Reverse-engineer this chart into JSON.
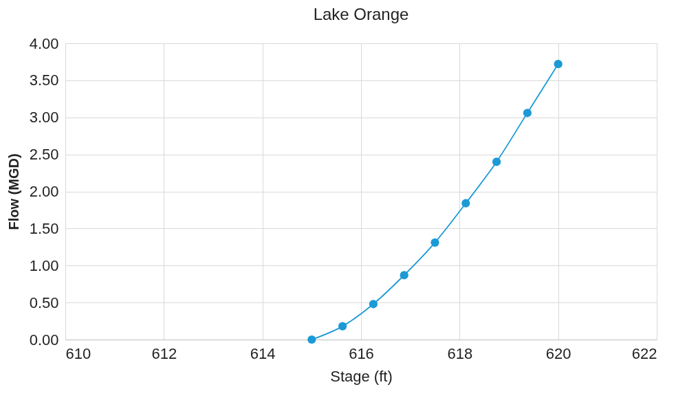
{
  "chart_data": {
    "type": "line",
    "title": "Lake Orange",
    "xlabel": "Stage (ft)",
    "ylabel": "Flow (MGD)",
    "series": [
      {
        "color": "#1b9ad6",
        "x": [
          615,
          615.625,
          616.25,
          616.875,
          617.5,
          618.125,
          618.75,
          619.375,
          620
        ],
        "values": [
          0,
          0.18,
          0.48,
          0.87,
          1.31,
          1.84,
          2.4,
          3.06,
          3.72
        ]
      }
    ],
    "xlim": [
      610,
      622
    ],
    "xticks": [
      610,
      612,
      614,
      616,
      618,
      620,
      622
    ],
    "ylim": [
      0,
      4
    ],
    "yticks": [
      {
        "value": 0,
        "label": "0.00"
      },
      {
        "value": 0.5,
        "label": "0.50"
      },
      {
        "value": 1,
        "label": "1.00"
      },
      {
        "value": 1.5,
        "label": "1.50"
      },
      {
        "value": 2,
        "label": "2.00"
      },
      {
        "value": 2.5,
        "label": "2.50"
      },
      {
        "value": 3,
        "label": "3.00"
      },
      {
        "value": 3.5,
        "label": "3.50"
      },
      {
        "value": 4,
        "label": "4.00"
      }
    ],
    "grid": true,
    "marker": "circle"
  }
}
